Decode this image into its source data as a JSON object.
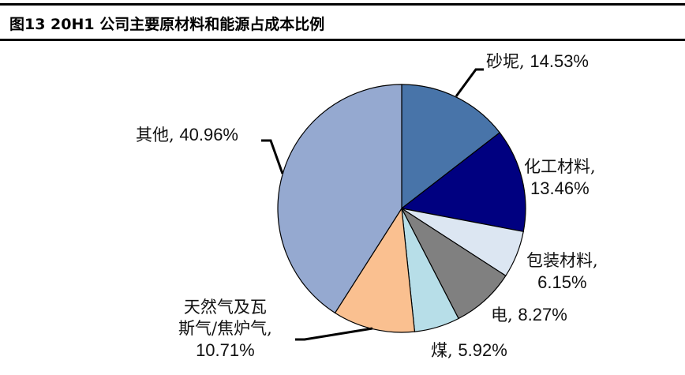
{
  "header": {
    "title": "图13 20H1 公司主要原材料和能源占成本比例"
  },
  "chart_data": {
    "type": "pie",
    "title": "图13 20H1 公司主要原材料和能源占成本比例",
    "start_angle_deg": 0,
    "direction": "clockwise",
    "slices": [
      {
        "label": "砂坭",
        "value": 14.53,
        "display": "14.53%",
        "color": "#4874A9"
      },
      {
        "label": "化工材料",
        "value": 13.46,
        "display": "13.46%",
        "color": "#000080"
      },
      {
        "label": "包装材料",
        "value": 6.15,
        "display": "6.15%",
        "color": "#DCE6F2"
      },
      {
        "label": "电",
        "value": 8.27,
        "display": "8.27%",
        "color": "#808080"
      },
      {
        "label": "煤",
        "value": 5.92,
        "display": "5.92%",
        "color": "#B7DEE8"
      },
      {
        "label": "天然气及瓦斯气/焦炉气",
        "value": 10.71,
        "display": "10.71%",
        "color": "#FAC090"
      },
      {
        "label": "其他",
        "value": 40.96,
        "display": "40.96%",
        "color": "#95A9D0"
      }
    ]
  },
  "labels": {
    "s0": {
      "name": "砂坭,",
      "pct": "14.53%"
    },
    "s1": {
      "name": "化工材料,",
      "pct": "13.46%"
    },
    "s2": {
      "name": "包装材料,",
      "pct": "6.15%"
    },
    "s3": {
      "name": "电,",
      "pct": "8.27%"
    },
    "s4": {
      "name": "煤,",
      "pct": "5.92%"
    },
    "s5": {
      "line1": "天然气及瓦",
      "line2": "斯气/焦炉气,",
      "pct": "10.71%"
    },
    "s6": {
      "name": "其他,",
      "pct": "40.96%"
    }
  }
}
